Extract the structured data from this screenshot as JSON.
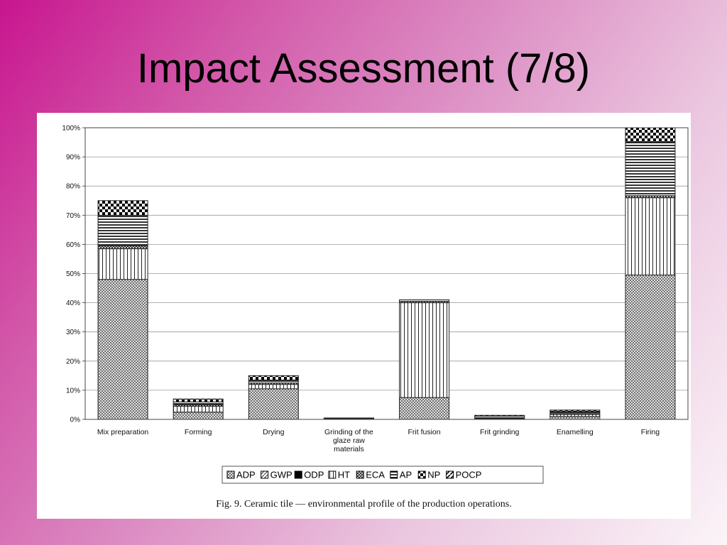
{
  "slide": {
    "title": "Impact Assessment (7/8)"
  },
  "figure": {
    "caption": "Fig. 9.   Ceramic tile — environmental profile of the production operations."
  },
  "chart_data": {
    "type": "bar",
    "stacked": true,
    "categories": [
      "Mix preparation",
      "Forming",
      "Drying",
      "Grinding of the glaze raw materials",
      "Frit fusion",
      "Frit grinding",
      "Enamelling",
      "Firing"
    ],
    "category_lines": [
      [
        "Mix preparation"
      ],
      [
        "Forming"
      ],
      [
        "Drying"
      ],
      [
        "Grinding of the",
        "glaze raw",
        "materials"
      ],
      [
        "Frit fusion"
      ],
      [
        "Frit grinding"
      ],
      [
        "Enamelling"
      ],
      [
        "Firing"
      ]
    ],
    "series": [
      {
        "name": "ADP",
        "values": [
          48,
          2.5,
          10.5,
          0.2,
          7.5,
          0.3,
          1,
          49.5
        ]
      },
      {
        "name": "GWP",
        "values": [
          0,
          0,
          0,
          0,
          0,
          0,
          0,
          0
        ]
      },
      {
        "name": "ODP",
        "values": [
          0,
          0,
          0,
          0,
          0,
          0,
          0,
          0
        ]
      },
      {
        "name": "HT",
        "values": [
          10.5,
          2,
          1.5,
          0,
          32.5,
          0,
          0.7,
          26.5
        ]
      },
      {
        "name": "ECA",
        "values": [
          1,
          0.5,
          0.5,
          0,
          0.5,
          0,
          0.3,
          0.7
        ]
      },
      {
        "name": "AP",
        "values": [
          10.5,
          1,
          1,
          0.2,
          0.5,
          0.8,
          0.7,
          18.5
        ]
      },
      {
        "name": "NP",
        "values": [
          5,
          1,
          1.5,
          0.1,
          0,
          0.3,
          0.5,
          4.8
        ]
      },
      {
        "name": "POCP",
        "values": [
          0,
          0,
          0,
          0,
          0,
          0,
          0,
          0
        ]
      }
    ],
    "yticks": [
      "0%",
      "10%",
      "20%",
      "30%",
      "40%",
      "50%",
      "60%",
      "70%",
      "80%",
      "90%",
      "100%"
    ],
    "ylim": [
      0,
      100
    ],
    "grid": true,
    "legend": "bottom"
  }
}
